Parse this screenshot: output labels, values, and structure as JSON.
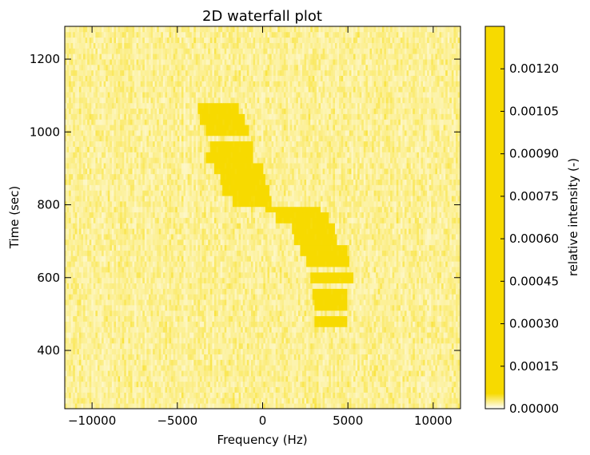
{
  "chart_data": {
    "type": "heatmap",
    "title": "2D waterfall plot",
    "xlabel": "Frequency (Hz)",
    "ylabel": "Time (sec)",
    "xlim": [
      -11600,
      11600
    ],
    "ylim": [
      240,
      1290
    ],
    "xticks": [
      -10000,
      -5000,
      0,
      5000,
      10000
    ],
    "xtick_labels": [
      "−10000",
      "−5000",
      "0",
      "5000",
      "10000"
    ],
    "yticks": [
      400,
      600,
      800,
      1000,
      1200
    ],
    "ytick_labels": [
      "400",
      "600",
      "800",
      "1000",
      "1200"
    ],
    "grid": false,
    "colormap": {
      "low": "#ffffff",
      "high": "#f7da00"
    },
    "colorbar": {
      "label": "relative intensity (-)",
      "range": [
        0,
        0.00135
      ],
      "ticks": [
        0,
        0.00015,
        0.0003,
        0.00045,
        0.0006,
        0.00075,
        0.0009,
        0.00105,
        0.0012
      ],
      "tick_labels": [
        "0.00000",
        "0.00015",
        "0.00030",
        "0.00045",
        "0.00060",
        "0.00075",
        "0.00090",
        "0.00105",
        "0.00120"
      ]
    },
    "signal_track": [
      {
        "time": 1070,
        "freq_from": -3800,
        "freq_to": -1400
      },
      {
        "time": 1040,
        "freq_from": -3700,
        "freq_to": -1000
      },
      {
        "time": 1000,
        "freq_from": -3300,
        "freq_to": -800
      },
      {
        "time": 960,
        "freq_from": -3100,
        "freq_to": -600
      },
      {
        "time": 930,
        "freq_from": -3300,
        "freq_to": -600
      },
      {
        "time": 900,
        "freq_from": -2800,
        "freq_to": 0
      },
      {
        "time": 870,
        "freq_from": -2500,
        "freq_to": 100
      },
      {
        "time": 840,
        "freq_from": -2400,
        "freq_to": 400
      },
      {
        "time": 810,
        "freq_from": -1700,
        "freq_to": 500
      },
      {
        "time": 790,
        "freq_from": 200,
        "freq_to": 3400
      },
      {
        "time": 760,
        "freq_from": 800,
        "freq_to": 3900
      },
      {
        "time": 730,
        "freq_from": 1700,
        "freq_to": 4200
      },
      {
        "time": 700,
        "freq_from": 1900,
        "freq_to": 4400
      },
      {
        "time": 670,
        "freq_from": 2200,
        "freq_to": 4900
      },
      {
        "time": 640,
        "freq_from": 2600,
        "freq_to": 5100
      },
      {
        "time": 600,
        "freq_from": 2800,
        "freq_to": 5300
      },
      {
        "time": 560,
        "freq_from": 2900,
        "freq_to": 5000
      },
      {
        "time": 520,
        "freq_from": 3000,
        "freq_to": 5000
      },
      {
        "time": 480,
        "freq_from": 3100,
        "freq_to": 4900
      }
    ],
    "signal_intensity": 0.0013,
    "noise_level": 0.0003
  }
}
